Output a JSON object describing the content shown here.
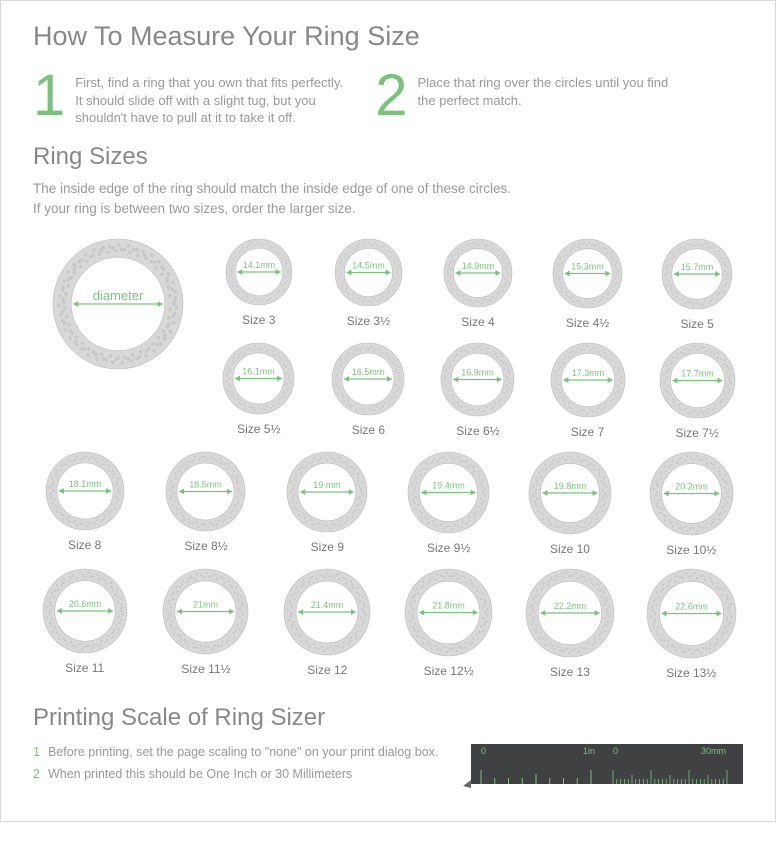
{
  "title": "How To Measure Your Ring Size",
  "steps": [
    {
      "num": "1",
      "text": "First, find a ring that you own that fits perfectly. It should slide off with a slight tug, but you shouldn't have to pull at it to take it off."
    },
    {
      "num": "2",
      "text": "Place that ring over the circles until you find the perfect match."
    }
  ],
  "ring_sizes_heading": "Ring Sizes",
  "ring_sizes_subtitle_line1": "The inside edge of the ring should match the inside edge of one of these circles.",
  "ring_sizes_subtitle_line2": "If your ring is between two sizes, order the larger size.",
  "example_label": "diameter",
  "accent_color": "#7cc27f",
  "ring_band_color": "#d8d8d8",
  "ring_band_texture": "#c8c8c8",
  "text_color": "#888888",
  "rows": [
    {
      "partial": true,
      "rings": [
        {
          "mm": "14.1mm",
          "size": "Size 3",
          "d": 66
        },
        {
          "mm": "14.5mm",
          "size": "Size 3½",
          "d": 67
        },
        {
          "mm": "14.9mm",
          "size": "Size 4",
          "d": 68
        },
        {
          "mm": "15.3mm",
          "size": "Size 4½",
          "d": 69
        },
        {
          "mm": "15.7mm",
          "size": "Size 5",
          "d": 70
        }
      ]
    },
    {
      "partial": true,
      "rings": [
        {
          "mm": "16.1mm",
          "size": "Size 5½",
          "d": 71
        },
        {
          "mm": "16.5mm",
          "size": "Size 6",
          "d": 72
        },
        {
          "mm": "16.9mm",
          "size": "Size 6½",
          "d": 73
        },
        {
          "mm": "17.3mm",
          "size": "Size 7",
          "d": 74
        },
        {
          "mm": "17.7mm",
          "size": "Size 7½",
          "d": 75
        }
      ]
    },
    {
      "partial": false,
      "rings": [
        {
          "mm": "18.1mm",
          "size": "Size 8",
          "d": 78
        },
        {
          "mm": "18.5mm",
          "size": "Size 8½",
          "d": 79
        },
        {
          "mm": "19 mm",
          "size": "Size 9",
          "d": 80
        },
        {
          "mm": "19.4mm",
          "size": "Size 9½",
          "d": 81
        },
        {
          "mm": "19.8mm",
          "size": "Size 10",
          "d": 82
        },
        {
          "mm": "20.2mm",
          "size": "Size 10½",
          "d": 83
        }
      ]
    },
    {
      "partial": false,
      "rings": [
        {
          "mm": "20.6mm",
          "size": "Size 11",
          "d": 84
        },
        {
          "mm": "21mm",
          "size": "Size 11½",
          "d": 85
        },
        {
          "mm": "21.4mm",
          "size": "Size 12",
          "d": 86
        },
        {
          "mm": "21.8mm",
          "size": "Size 12½",
          "d": 87
        },
        {
          "mm": "22.2mm",
          "size": "Size 13",
          "d": 88
        },
        {
          "mm": "22.6mm",
          "size": "Size 13½",
          "d": 89
        }
      ]
    }
  ],
  "print_heading": "Printing Scale of Ring Sizer",
  "print_steps": [
    {
      "num": "1",
      "text": "Before printing, set  the page scaling to \"none\" on your print dialog box."
    },
    {
      "num": "2",
      "text": "When printed this should be One Inch or 30 Millimeters"
    }
  ],
  "ruler": {
    "bg": "#3f4143",
    "tick_color": "#7cc27f",
    "labels_in": [
      "0",
      "1in"
    ],
    "labels_mm": [
      "0",
      "30mm"
    ]
  }
}
